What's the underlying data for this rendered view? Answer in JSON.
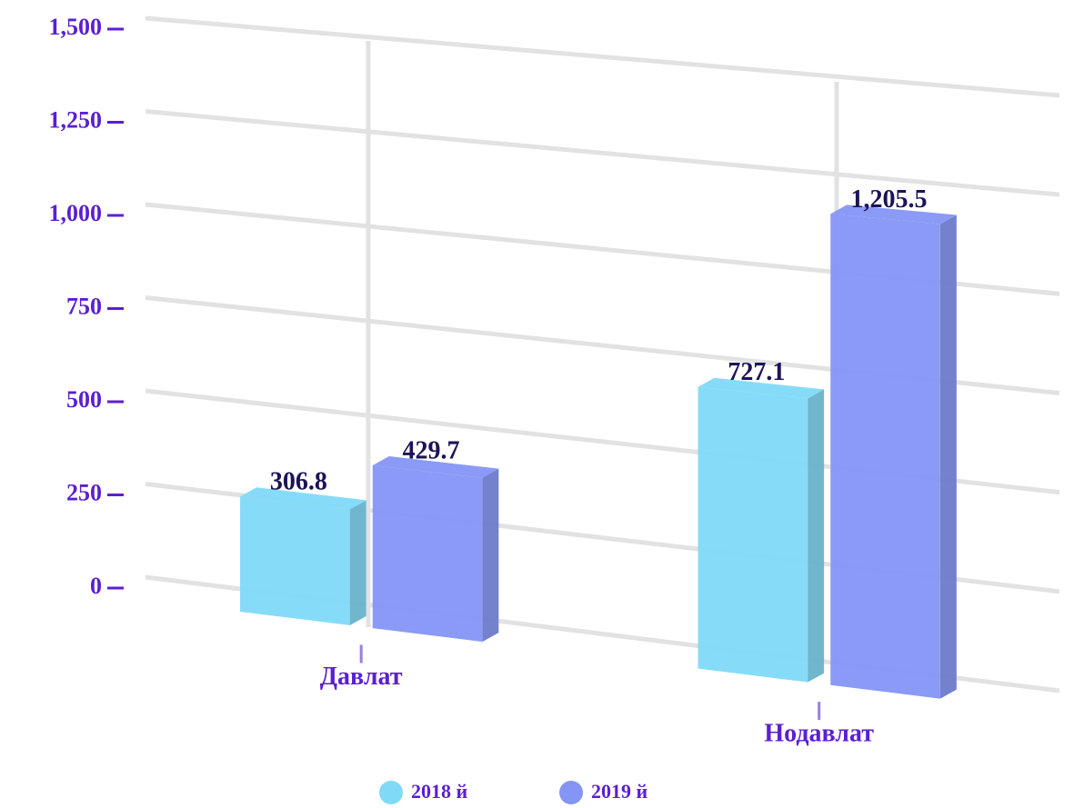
{
  "chart_data": {
    "type": "bar3d",
    "categories": [
      "Давлат",
      "Нодавлат"
    ],
    "series": [
      {
        "name": "2018 й",
        "color": "#7fdaf8",
        "values": [
          306.8,
          727.1
        ]
      },
      {
        "name": "2019 й",
        "color": "#8595f5",
        "values": [
          429.7,
          1205.5
        ],
        "value_labels": [
          "429.7",
          "1,205.5"
        ]
      }
    ],
    "ylim": [
      0,
      1500
    ],
    "yticks": [
      0,
      250,
      500,
      750,
      {
        "value": 1000,
        "label": "1,000"
      },
      {
        "value": 1250,
        "label": "1,250"
      },
      {
        "value": 1500,
        "label": "1,500"
      }
    ],
    "grid": true
  }
}
